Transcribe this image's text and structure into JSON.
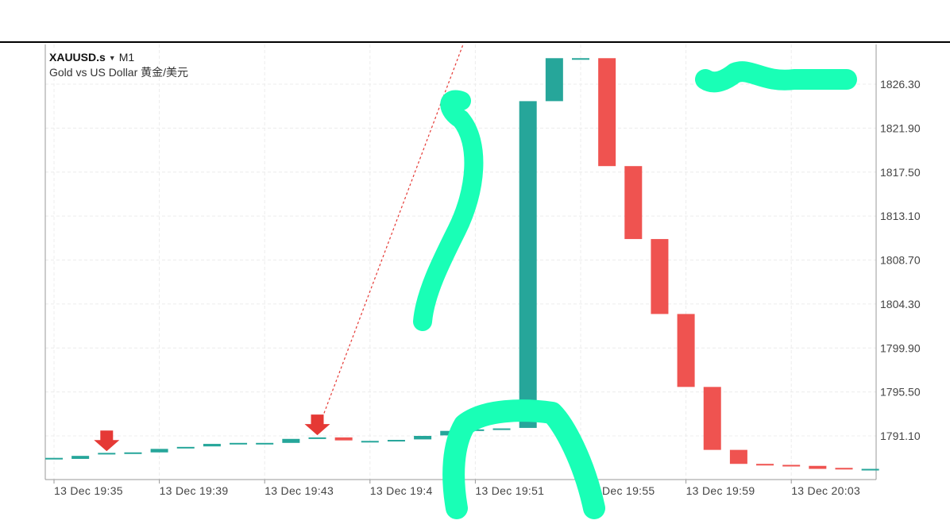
{
  "header": {
    "symbol": "XAUUSD.s",
    "dropdown_icon": "caret-down-icon",
    "timeframe": "M1",
    "description": "Gold vs US Dollar 黄金/美元"
  },
  "colors": {
    "up": "#26a69a",
    "down": "#ef5350",
    "signal_arrow": "#e53935",
    "highlighter": "#19ffb6",
    "grid": "#ececec"
  },
  "chart_data": {
    "type": "candlestick",
    "y_axis_ticks": [
      "1826.30",
      "1821.90",
      "1817.50",
      "1813.10",
      "1808.70",
      "1804.30",
      "1799.90",
      "1795.50",
      "1791.10"
    ],
    "x_axis_ticks": [
      "13 Dec 19:35",
      "13 Dec 19:39",
      "13 Dec 19:43",
      "13 Dec 19:4",
      "13 Dec 19:51",
      "",
      "13 Dec 19:59",
      "13 Dec 20:03"
    ],
    "x_tick_at_19_55_partial": "Dec 19:55",
    "ylim": [
      1787.2,
      1828.6
    ],
    "candles": [
      {
        "o": 1788.9,
        "c": 1788.9
      },
      {
        "o": 1788.8,
        "c": 1789.1
      },
      {
        "o": 1789.25,
        "c": 1789.4
      },
      {
        "o": 1789.45,
        "c": 1789.45
      },
      {
        "o": 1789.45,
        "c": 1789.8
      },
      {
        "o": 1789.85,
        "c": 1790.0
      },
      {
        "o": 1790.05,
        "c": 1790.3
      },
      {
        "o": 1790.35,
        "c": 1790.4
      },
      {
        "o": 1790.4,
        "c": 1790.4
      },
      {
        "o": 1790.4,
        "c": 1790.8
      },
      {
        "o": 1790.85,
        "c": 1790.95
      },
      {
        "o": 1790.95,
        "c": 1790.65
      },
      {
        "o": 1790.6,
        "c": 1790.6
      },
      {
        "o": 1790.6,
        "c": 1790.7
      },
      {
        "o": 1790.75,
        "c": 1791.1
      },
      {
        "o": 1791.15,
        "c": 1791.6
      },
      {
        "o": 1791.65,
        "c": 1791.75
      },
      {
        "o": 1791.75,
        "c": 1791.85
      },
      {
        "o": 1791.9,
        "c": 1824.6
      },
      {
        "o": 1824.6,
        "c": 1828.9
      },
      {
        "o": 1828.9,
        "c": 1828.9
      },
      {
        "o": 1828.9,
        "c": 1818.1
      },
      {
        "o": 1818.1,
        "c": 1810.8
      },
      {
        "o": 1810.8,
        "c": 1803.3
      },
      {
        "o": 1803.3,
        "c": 1796.0
      },
      {
        "o": 1796.0,
        "c": 1789.7
      },
      {
        "o": 1789.7,
        "c": 1788.3
      },
      {
        "o": 1788.3,
        "c": 1788.2
      },
      {
        "o": 1788.2,
        "c": 1788.1
      },
      {
        "o": 1788.1,
        "c": 1787.8
      },
      {
        "o": 1787.9,
        "c": 1787.8
      },
      {
        "o": 1787.8,
        "c": 1787.8
      }
    ],
    "signal_arrows_at_candle": [
      2,
      10
    ]
  }
}
